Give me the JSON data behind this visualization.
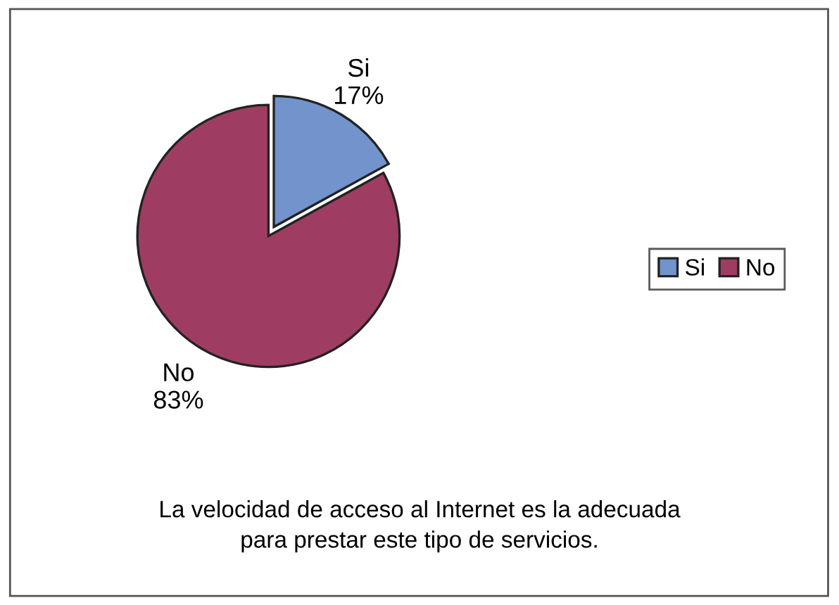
{
  "chart_data": {
    "type": "pie",
    "title": "La velocidad de acceso al Internet es la adecuada\npara prestar este tipo de servicios.",
    "categories": [
      "Si",
      "No"
    ],
    "values": [
      17,
      83
    ],
    "value_labels": [
      "17%",
      "83%"
    ],
    "colors": [
      "#7293cb",
      "#9e3d61"
    ],
    "legend": "right"
  }
}
